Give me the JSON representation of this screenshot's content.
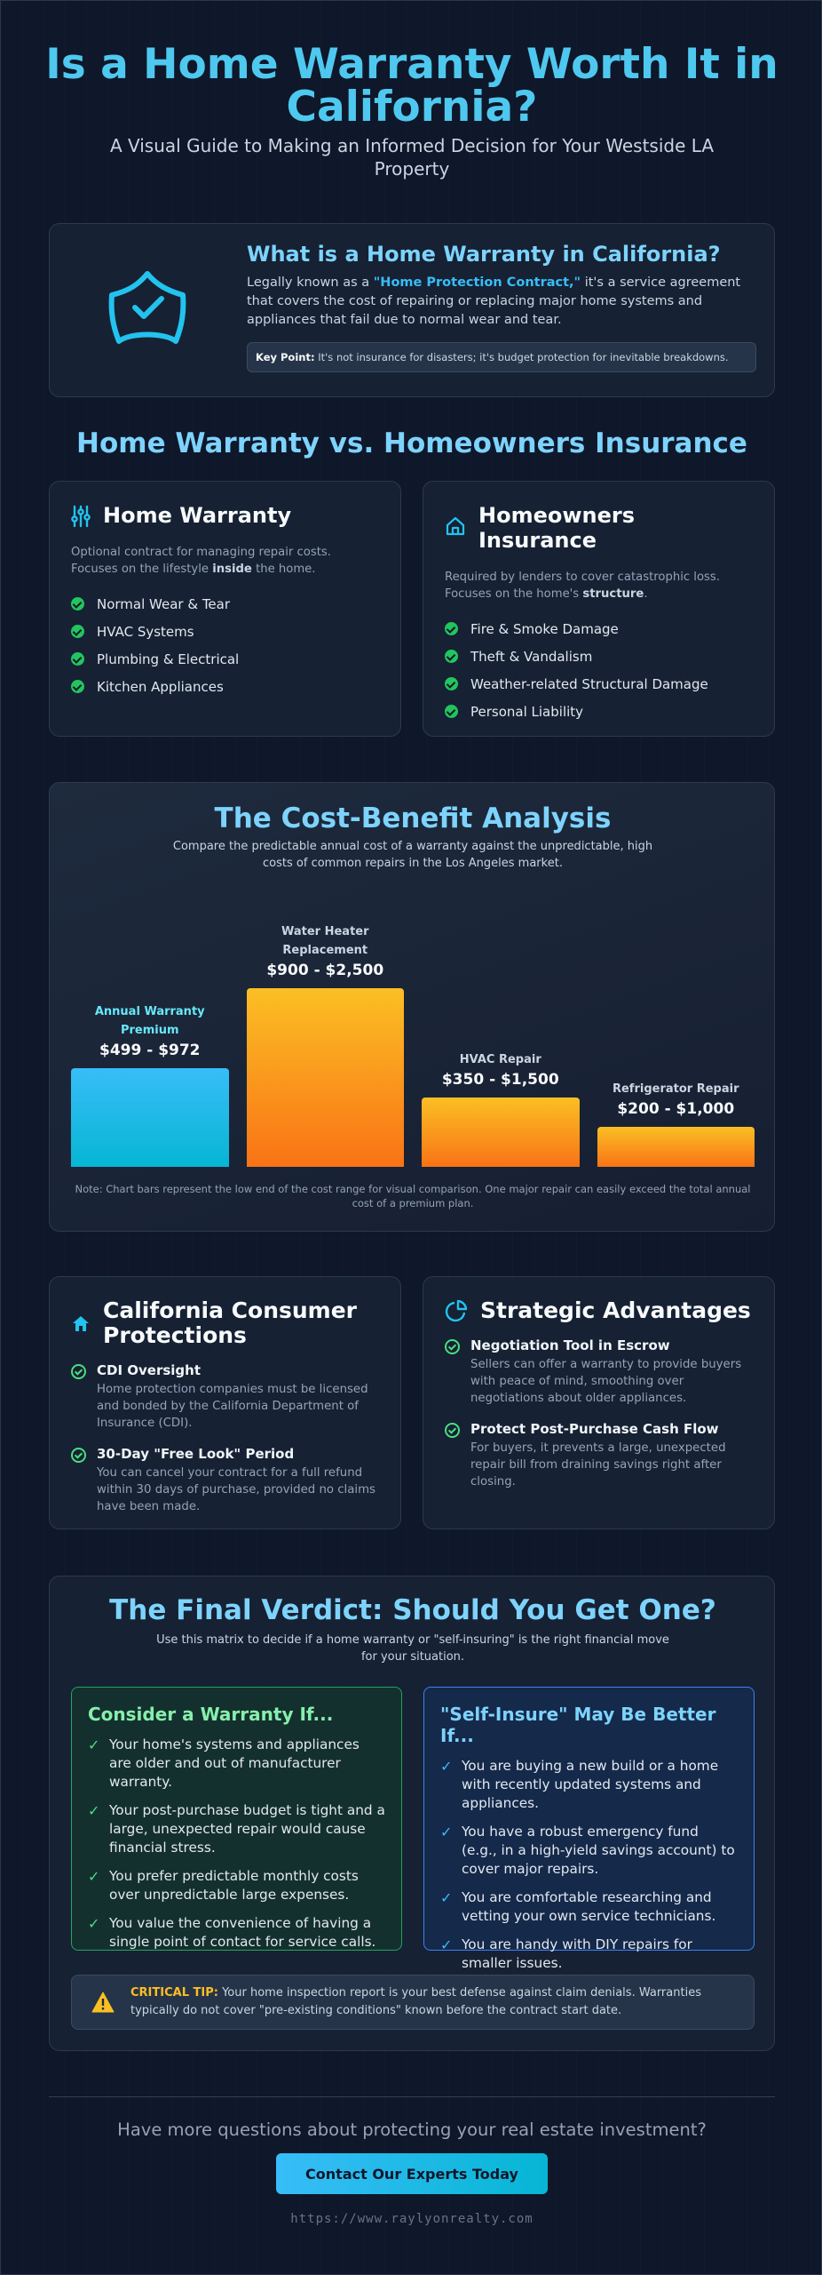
{
  "header": {
    "title": "Is a Home Warranty Worth It in California?",
    "subtitle": "A Visual Guide to Making an Informed Decision for Your Westside LA Property"
  },
  "intro": {
    "heading": "What is a Home Warranty in California?",
    "text": [
      {
        "text": "Legally known as a "
      },
      {
        "text": "\"Home Protection Contract,\"",
        "strong": true
      },
      {
        "text": " it's a service agreement that covers the cost of repairing or replacing major home systems and appliances that fail due to normal wear and tear."
      }
    ],
    "key_label": "Key Point:",
    "key_text": "It's not insurance for disasters; it's budget protection for inevitable breakdowns."
  },
  "comparison": {
    "heading": "Home Warranty vs. Homeowners Insurance",
    "cards": [
      {
        "title": "Home Warranty",
        "description": [
          {
            "text": "Optional contract for managing repair costs. Focuses on the lifestyle "
          },
          {
            "text": "inside",
            "strong": true
          },
          {
            "text": " the home."
          }
        ],
        "items": [
          "Normal Wear & Tear",
          "HVAC Systems",
          "Plumbing & Electrical",
          "Kitchen Appliances"
        ]
      },
      {
        "title": "Homeowners Insurance",
        "description": [
          {
            "text": "Required by lenders to cover catastrophic loss. Focuses on the home's "
          },
          {
            "text": "structure",
            "strong": true
          },
          {
            "text": "."
          }
        ],
        "items": [
          "Fire & Smoke Damage",
          "Theft & Vandalism",
          "Weather-related Structural Damage",
          "Personal Liability"
        ]
      }
    ]
  },
  "chart_data": {
    "type": "bar",
    "title": "The Cost-Benefit Analysis",
    "subtitle": "Compare the predictable annual cost of a warranty against the unpredictable, high costs of common repairs in the Los Angeles market.",
    "categories": [
      "Annual Warranty Premium",
      "Water Heater Replacement",
      "HVAC Repair",
      "Refrigerator Repair"
    ],
    "values": [
      499,
      900,
      350,
      200
    ],
    "value_labels": [
      "$499 - $972",
      "$900 - $2,500",
      "$350 - $1,500",
      "$200 - $1,000"
    ],
    "colors": [
      [
        "#38bdf8",
        "#06b6d4"
      ],
      [
        "#fbbf24",
        "#f97316"
      ],
      [
        "#fbbf24",
        "#f97316"
      ],
      [
        "#fbbf24",
        "#f97316"
      ]
    ],
    "label_colors": [
      "#67e8f9",
      "#cbd5e1",
      "#cbd5e1",
      "#cbd5e1"
    ],
    "note": "Note: Chart bars represent the low end of the cost range for visual comparison. One major repair can easily exceed the total annual cost of a premium plan."
  },
  "features": {
    "cards": [
      {
        "title": "California Consumer Protections",
        "items": [
          {
            "title": "CDI Oversight",
            "text": "Home protection companies must be licensed and bonded by the California Department of Insurance (CDI)."
          },
          {
            "title": "30-Day \"Free Look\" Period",
            "text": "You can cancel your contract for a full refund within 30 days of purchase, provided no claims have been made."
          }
        ]
      },
      {
        "title": "Strategic Advantages",
        "items": [
          {
            "title": "Negotiation Tool in Escrow",
            "text": "Sellers can offer a warranty to provide buyers with peace of mind, smoothing over negotiations about older appliances."
          },
          {
            "title": "Protect Post-Purchase Cash Flow",
            "text": "For buyers, it prevents a large, unexpected repair bill from draining savings right after closing."
          }
        ]
      }
    ]
  },
  "verdict": {
    "heading": "The Final Verdict: Should You Get One?",
    "subtitle": "Use this matrix to decide if a home warranty or \"self-insuring\" is the right financial move for your situation.",
    "columns": [
      {
        "title": "Consider a Warranty If...",
        "items": [
          "Your home's systems and appliances are older and out of manufacturer warranty.",
          "Your post-purchase budget is tight and a large, unexpected repair would cause financial stress.",
          "You prefer predictable monthly costs over unpredictable large expenses.",
          "You value the convenience of having a single point of contact for service calls."
        ]
      },
      {
        "title": "\"Self-Insure\" May Be Better If...",
        "items": [
          "You are buying a new build or a home with recently updated systems and appliances.",
          "You have a robust emergency fund (e.g., in a high-yield savings account) to cover major repairs.",
          "You are comfortable researching and vetting your own service technicians.",
          "You are handy with DIY repairs for smaller issues."
        ]
      }
    ],
    "tip_label": "CRITICAL TIP:",
    "tip_text": "Your home inspection report is your best defense against claim denials. Warranties typically do not cover \"pre-existing conditions\" known before the contract start date."
  },
  "footer": {
    "question": "Have more questions about protecting your real estate investment?",
    "button": "Contact Our Experts Today",
    "url": "https://www.raylyonrealty.com"
  }
}
